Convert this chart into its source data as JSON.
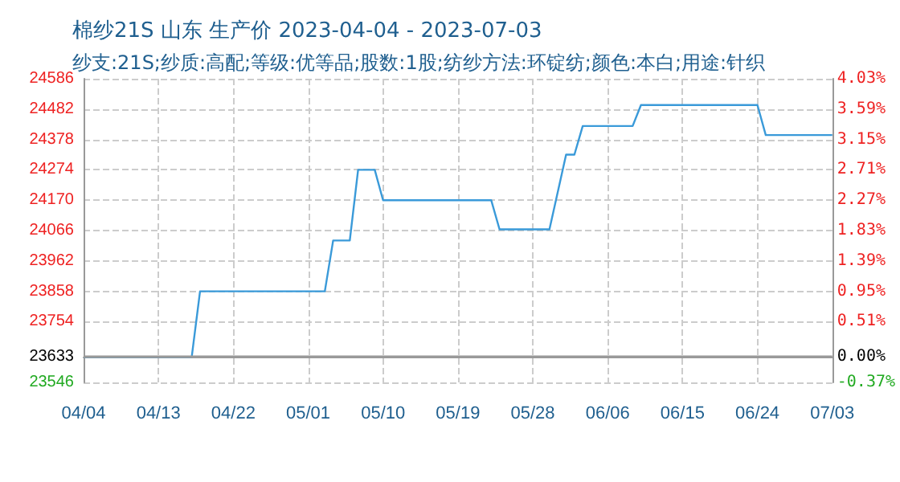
{
  "chart_data": {
    "type": "line",
    "title": "棉纱21S 山东 生产价 2023-04-04 - 2023-07-03",
    "subtitle": "纱支:21S;纱质:高配;等级:优等品;股数:1股;纺纱方法:环锭纺;颜色:本白;用途:针织",
    "x": [
      "2023-04-04",
      "2023-04-17",
      "2023-04-18",
      "2023-05-03",
      "2023-05-04",
      "2023-05-06",
      "2023-05-07",
      "2023-05-09",
      "2023-05-10",
      "2023-05-23",
      "2023-05-24",
      "2023-05-30",
      "2023-06-01",
      "2023-06-02",
      "2023-06-03",
      "2023-06-09",
      "2023-06-10",
      "2023-06-24",
      "2023-06-25",
      "2023-07-03"
    ],
    "series": [
      {
        "color": "#3a9ad9",
        "values": [
          23633,
          23633,
          23858,
          23858,
          24032,
          24032,
          24274,
          24274,
          24170,
          24170,
          24070,
          24070,
          24326,
          24326,
          24424,
          24424,
          24496,
          24496,
          24393,
          24393
        ]
      }
    ],
    "xlim": [
      "2023-04-04",
      "2023-07-03"
    ],
    "xticks": [
      {
        "value": "2023-04-04",
        "label": "04/04"
      },
      {
        "value": "2023-04-13",
        "label": "04/13"
      },
      {
        "value": "2023-04-22",
        "label": "04/22"
      },
      {
        "value": "2023-05-01",
        "label": "05/01"
      },
      {
        "value": "2023-05-10",
        "label": "05/10"
      },
      {
        "value": "2023-05-19",
        "label": "05/19"
      },
      {
        "value": "2023-05-28",
        "label": "05/28"
      },
      {
        "value": "2023-06-06",
        "label": "06/06"
      },
      {
        "value": "2023-06-15",
        "label": "06/15"
      },
      {
        "value": "2023-06-24",
        "label": "06/24"
      },
      {
        "value": "2023-07-03",
        "label": "07/03"
      }
    ],
    "ylim": [
      23546,
      24586
    ],
    "yticks": [
      23546,
      23633,
      23754,
      23858,
      23962,
      24066,
      24170,
      24274,
      24378,
      24482,
      24586
    ],
    "y2lim": [
      -0.37,
      4.03
    ],
    "y2ticks": [
      {
        "value": -0.37,
        "label": "-0.37%"
      },
      {
        "value": 0,
        "label": "0.00%"
      },
      {
        "value": 0.51,
        "label": "0.51%"
      },
      {
        "value": 0.95,
        "label": "0.95%"
      },
      {
        "value": 1.39,
        "label": "1.39%"
      },
      {
        "value": 1.83,
        "label": "1.83%"
      },
      {
        "value": 2.27,
        "label": "2.27%"
      },
      {
        "value": 2.71,
        "label": "2.71%"
      },
      {
        "value": 3.15,
        "label": "3.15%"
      },
      {
        "value": 3.59,
        "label": "3.59%"
      },
      {
        "value": 4.03,
        "label": "4.03%"
      }
    ],
    "ref_lines": [
      {
        "axis": "y",
        "value": 23633,
        "color": "#999999"
      }
    ],
    "grid": true,
    "marker": "none",
    "line_style": "solid"
  }
}
